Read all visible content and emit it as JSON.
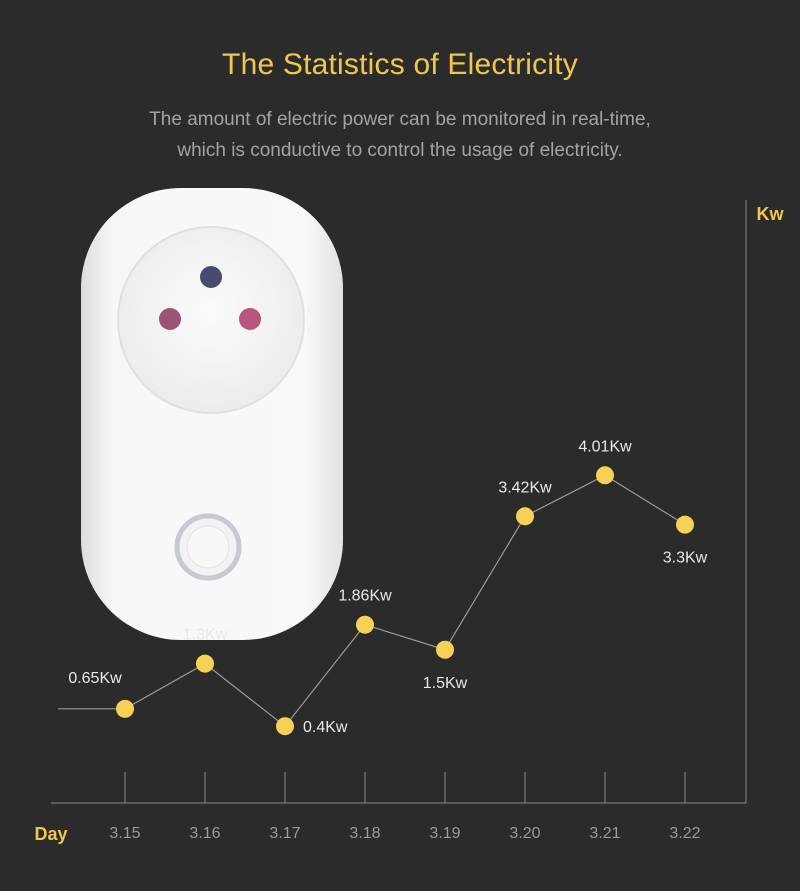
{
  "header": {
    "title": "The Statistics of Electricity",
    "subtitle_line1": "The amount of electric power can be monitored in real-time,",
    "subtitle_line2": "which is conductive to control the usage of electricity."
  },
  "device": {
    "icon": "smart-plug-socket-icon",
    "body_color": "#f4f4f4"
  },
  "colors": {
    "accent": "#f2c64a",
    "point": "#f7d155",
    "line": "#9a9a9a",
    "axis": "#8a8a8a",
    "text": "#e8e8e8",
    "tick_text": "#9a9a9a"
  },
  "chart_data": {
    "type": "line",
    "title": "The Statistics of Electricity",
    "xlabel": "Day",
    "ylabel": "Kw",
    "categories": [
      "3.15",
      "3.16",
      "3.17",
      "3.18",
      "3.19",
      "3.20",
      "3.21",
      "3.22"
    ],
    "series": [
      {
        "values": [
          0.65,
          1.3,
          0.4,
          1.86,
          1.5,
          3.42,
          4.01,
          3.3
        ],
        "labels": [
          "0.65Kw",
          "1.3Kw",
          "0.4Kw",
          "1.86Kw",
          "1.5Kw",
          "3.42Kw",
          "4.01Kw",
          "3.3Kw"
        ]
      }
    ],
    "grid": false
  }
}
